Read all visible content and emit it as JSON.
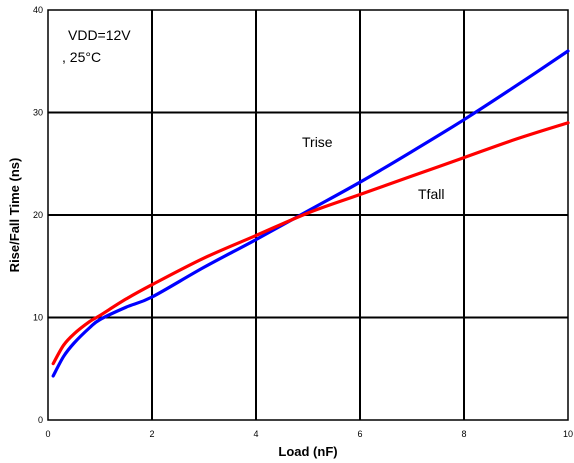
{
  "chart_data": {
    "type": "line",
    "title": "",
    "xlabel": "Load (nF)",
    "ylabel": "Rise/Fall Time (ns)",
    "xlim": [
      0,
      10
    ],
    "ylim": [
      0,
      40
    ],
    "x_ticks": [
      "0",
      "2",
      "4",
      "6",
      "8",
      "10"
    ],
    "y_ticks": [
      "0",
      "10",
      "20",
      "30",
      "40"
    ],
    "grid": true,
    "annotations": {
      "condition_line1": "VDD=12V",
      "condition_line2": ", 25°C"
    },
    "series": [
      {
        "name": "Trise",
        "color": "#0000ff",
        "x": [
          0.1,
          0.3,
          0.5,
          0.8,
          1,
          1.5,
          2,
          3,
          4,
          5,
          6,
          7,
          8,
          9,
          10
        ],
        "y": [
          4.3,
          6.2,
          7.5,
          9.0,
          9.8,
          11.0,
          12.0,
          14.9,
          17.6,
          20.4,
          23.2,
          26.2,
          29.3,
          32.6,
          36.0
        ]
      },
      {
        "name": "Tfall",
        "color": "#ff0000",
        "x": [
          0.1,
          0.3,
          0.5,
          0.8,
          1,
          1.5,
          2,
          3,
          4,
          5,
          6,
          7,
          8,
          9,
          10
        ],
        "y": [
          5.5,
          7.3,
          8.4,
          9.6,
          10.2,
          11.8,
          13.2,
          15.8,
          18.0,
          20.2,
          22.0,
          23.8,
          25.6,
          27.4,
          29.0
        ]
      }
    ]
  }
}
